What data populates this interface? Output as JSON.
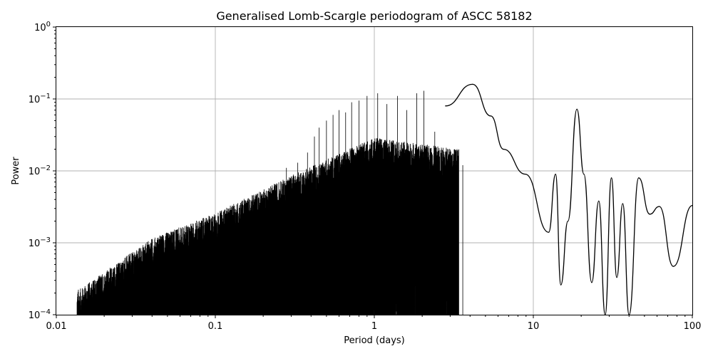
{
  "chart_data": {
    "type": "line",
    "title": "Generalised Lomb-Scargle periodogram of ASCC 58182",
    "xlabel": "Period (days)",
    "ylabel": "Power",
    "xscale": "log",
    "yscale": "log",
    "xlim": [
      0.01,
      100
    ],
    "ylim": [
      0.0001,
      1
    ],
    "grid": true,
    "x_ticks": [
      {
        "value": 0.01,
        "label": "0.01"
      },
      {
        "value": 0.1,
        "label": "0.1"
      },
      {
        "value": 1,
        "label": "1"
      },
      {
        "value": 10,
        "label": "10"
      },
      {
        "value": 100,
        "label": "100"
      }
    ],
    "y_ticks": [
      {
        "value": 0.0001,
        "base": "10",
        "exp": "−4"
      },
      {
        "value": 0.001,
        "base": "10",
        "exp": "−3"
      },
      {
        "value": 0.01,
        "base": "10",
        "exp": "−2"
      },
      {
        "value": 0.1,
        "base": "10",
        "exp": "−1"
      },
      {
        "value": 1,
        "base": "10",
        "exp": "0"
      }
    ],
    "line_color": "#000000",
    "series": [
      {
        "peaks": [
          {
            "x": 2.8,
            "y": 0.08
          },
          {
            "x": 4.15,
            "y": 0.16
          },
          {
            "x": 5.4,
            "y": 0.058
          },
          {
            "x": 6.5,
            "y": 0.02
          },
          {
            "x": 8.9,
            "y": 0.009
          },
          {
            "x": 12.5,
            "y": 0.0014
          },
          {
            "x": 13.8,
            "y": 0.009
          },
          {
            "x": 16.5,
            "y": 0.002
          },
          {
            "x": 18.8,
            "y": 0.072
          },
          {
            "x": 20.8,
            "y": 0.009
          },
          {
            "x": 25.8,
            "y": 0.0038
          },
          {
            "x": 31.0,
            "y": 0.008
          },
          {
            "x": 36.5,
            "y": 0.0035
          },
          {
            "x": 46.0,
            "y": 0.008
          },
          {
            "x": 62.0,
            "y": 0.0032
          },
          {
            "x": 100.0,
            "y": 0.0033
          }
        ],
        "minima": [
          {
            "x": 14.9,
            "y": 0.00026
          },
          {
            "x": 23.3,
            "y": 0.00028
          },
          {
            "x": 28.3,
            "y": 0.0001
          },
          {
            "x": 33.5,
            "y": 0.00033
          },
          {
            "x": 40.0,
            "y": 0.0001
          },
          {
            "x": 54.0,
            "y": 0.0025
          },
          {
            "x": 76.0,
            "y": 0.00047
          }
        ]
      }
    ]
  }
}
